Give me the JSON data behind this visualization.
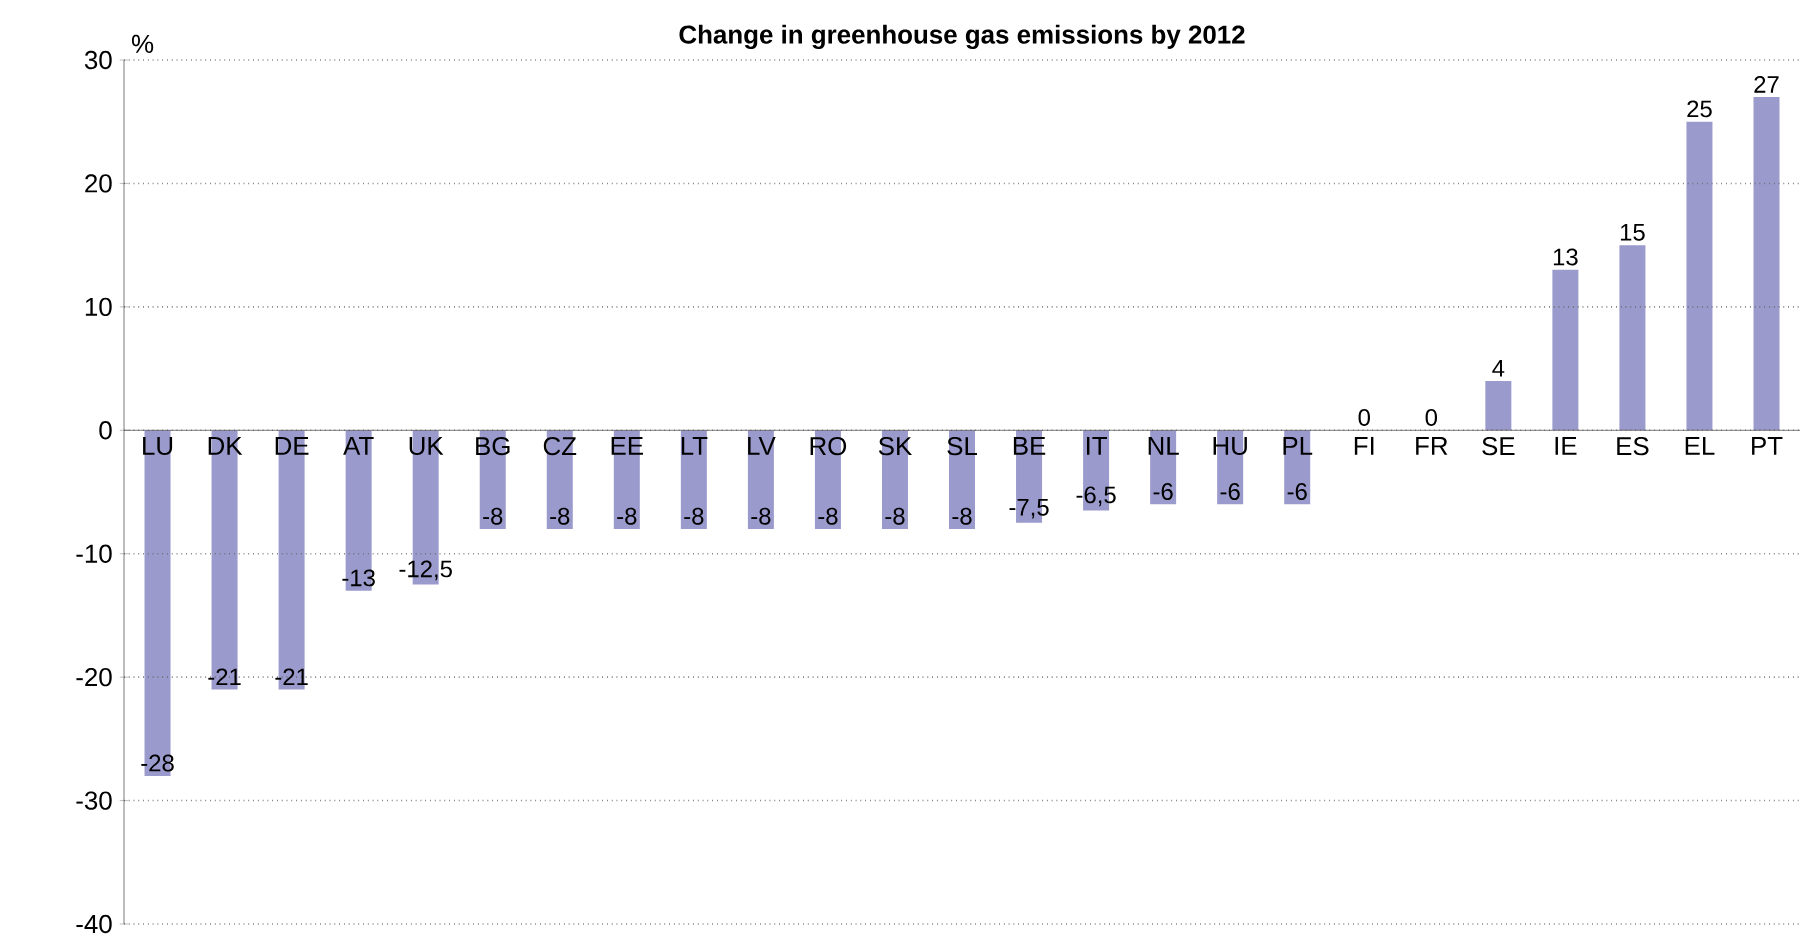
{
  "chart_data": {
    "type": "bar",
    "title": "Change in greenhouse gas emissions by 2012",
    "ylabel": "%",
    "categories": [
      "LU",
      "DK",
      "DE",
      "AT",
      "UK",
      "BG",
      "CZ",
      "EE",
      "LT",
      "LV",
      "RO",
      "SK",
      "SL",
      "BE",
      "IT",
      "NL",
      "HU",
      "PL",
      "FI",
      "FR",
      "SE",
      "IE",
      "ES",
      "EL",
      "PT"
    ],
    "values": [
      -28,
      -21,
      -21,
      -13,
      -12.5,
      -8,
      -8,
      -8,
      -8,
      -8,
      -8,
      -8,
      -8,
      -7.5,
      -6.5,
      -6,
      -6,
      -6,
      0,
      0,
      4,
      13,
      15,
      25,
      27
    ],
    "value_labels": [
      "-28",
      "-21",
      "-21",
      "-13",
      "-12,5",
      "-8",
      "-8",
      "-8",
      "-8",
      "-8",
      "-8",
      "-8",
      "-8",
      "-7,5",
      "-6,5",
      "-6",
      "-6",
      "-6",
      "0",
      "0",
      "4",
      "13",
      "15",
      "25",
      "27"
    ],
    "color": "#9a9acd",
    "ylim": [
      -40,
      30
    ],
    "yticks": [
      -40,
      -30,
      -20,
      -10,
      0,
      10,
      20,
      30
    ],
    "grid": "y"
  }
}
